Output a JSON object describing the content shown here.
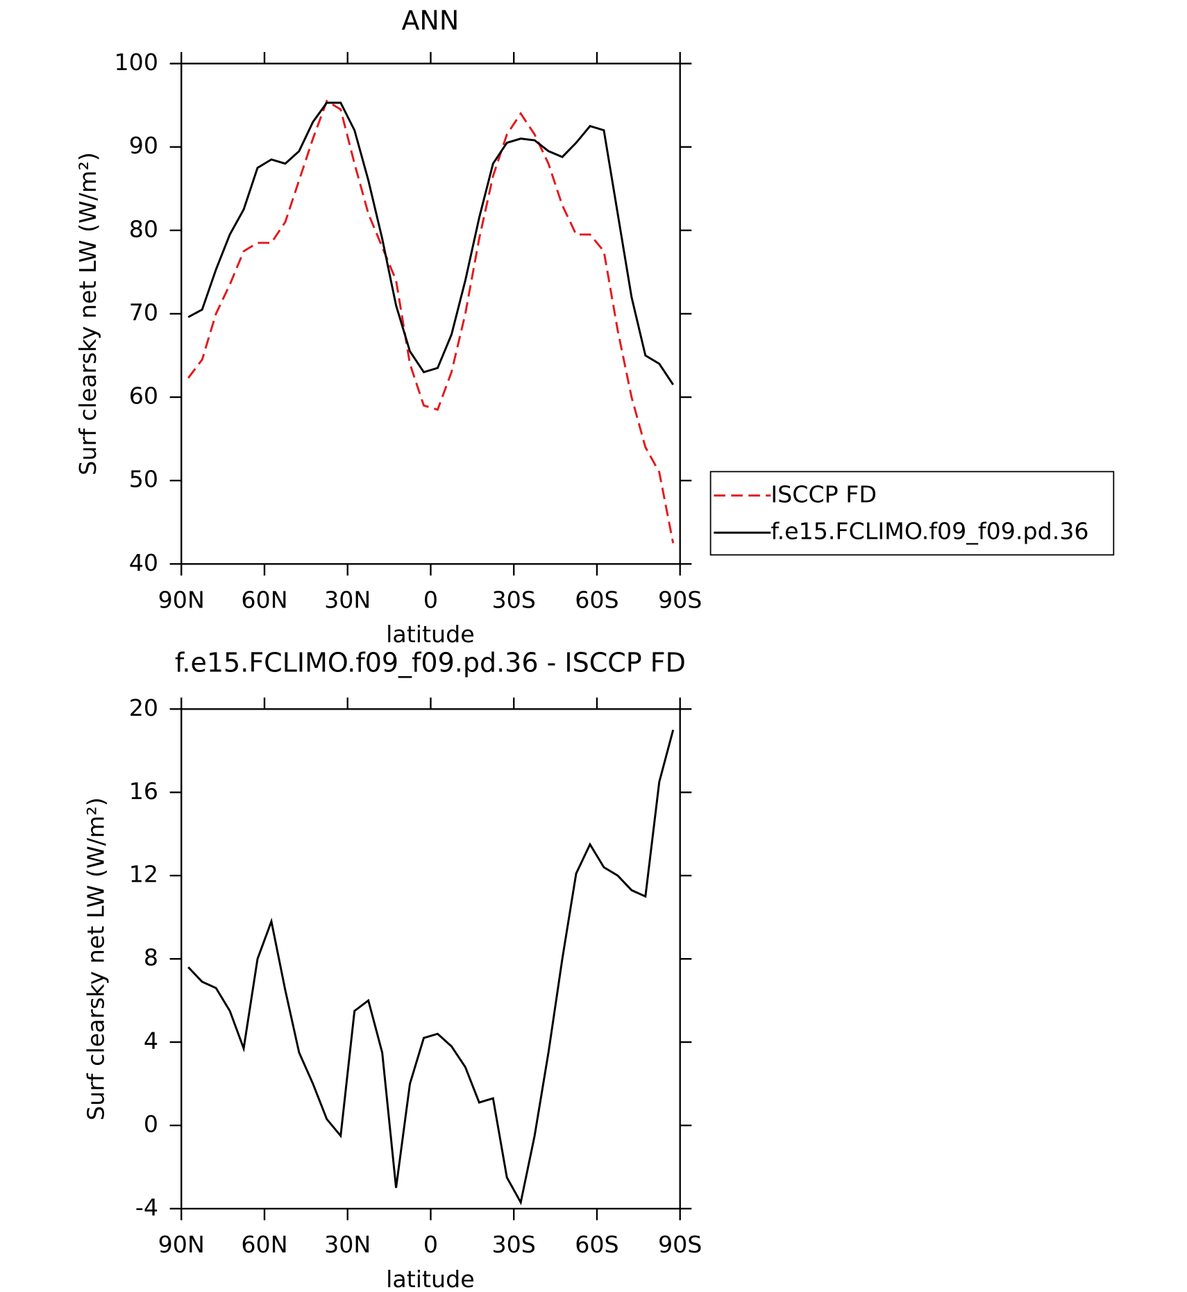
{
  "chart_data": [
    {
      "type": "line",
      "title": "ANN",
      "xlabel": "latitude",
      "ylabel": "Surf clearsky net LW (W/m²)",
      "x": [
        87.5,
        82.5,
        77.5,
        72.5,
        67.5,
        62.5,
        57.5,
        52.5,
        47.5,
        42.5,
        37.5,
        32.5,
        27.5,
        22.5,
        17.5,
        12.5,
        7.5,
        2.5,
        -2.5,
        -7.5,
        -12.5,
        -17.5,
        -22.5,
        -27.5,
        -32.5,
        -37.5,
        -42.5,
        -47.5,
        -52.5,
        -57.5,
        -62.5,
        -67.5,
        -72.5,
        -77.5,
        -82.5,
        -87.5
      ],
      "series": [
        {
          "name": "ISCCP FD",
          "color": "#e41a1c",
          "style": "dashed",
          "values": [
            62.3,
            64.5,
            70,
            73.5,
            77.5,
            78.5,
            78.5,
            81,
            86,
            91,
            95.5,
            94.5,
            88,
            82,
            78,
            74,
            64,
            59,
            58.5,
            63,
            70,
            79,
            86.5,
            91.5,
            94,
            91.5,
            88,
            83,
            79.5,
            79.5,
            77.5,
            68,
            60,
            54,
            51,
            42.5
          ]
        },
        {
          "name": "f.e15.FCLIMO.f09_f09.pd.36",
          "color": "#000000",
          "style": "solid",
          "values": [
            69.6,
            70.5,
            75.3,
            79.5,
            82.5,
            87.5,
            88.5,
            88,
            89.5,
            93,
            95.3,
            95.3,
            92,
            86,
            79,
            71,
            65.5,
            63,
            63.5,
            67.5,
            74,
            81.5,
            88,
            90.5,
            91,
            90.8,
            89.5,
            88.8,
            90.5,
            92.5,
            92,
            82,
            72,
            65,
            64,
            61.5
          ]
        }
      ],
      "xlim": [
        90,
        -90
      ],
      "xticks": [
        {
          "value": 90,
          "label": "90N"
        },
        {
          "value": 60,
          "label": "60N"
        },
        {
          "value": 30,
          "label": "30N"
        },
        0,
        {
          "value": -30,
          "label": "30S"
        },
        {
          "value": -60,
          "label": "60S"
        },
        {
          "value": -90,
          "label": "90S"
        }
      ],
      "ylim": [
        40,
        100
      ],
      "yticks": [
        40,
        50,
        60,
        70,
        80,
        90,
        100
      ],
      "legend": "right"
    },
    {
      "type": "line",
      "title": "f.e15.FCLIMO.f09_f09.pd.36 - ISCCP FD",
      "xlabel": "latitude",
      "ylabel": "Surf clearsky net LW (W/m²)",
      "x": [
        87.5,
        82.5,
        77.5,
        72.5,
        67.5,
        62.5,
        57.5,
        52.5,
        47.5,
        42.5,
        37.5,
        32.5,
        27.5,
        22.5,
        17.5,
        12.5,
        7.5,
        2.5,
        -2.5,
        -7.5,
        -12.5,
        -17.5,
        -22.5,
        -27.5,
        -32.5,
        -37.5,
        -42.5,
        -47.5,
        -52.5,
        -57.5,
        -62.5,
        -67.5,
        -72.5,
        -77.5,
        -82.5,
        -87.5
      ],
      "series": [
        {
          "color": "#000000",
          "style": "solid",
          "values": [
            7.6,
            6.9,
            6.6,
            5.5,
            3.7,
            8,
            9.8,
            6.5,
            3.5,
            2,
            0.3,
            -0.5,
            5.5,
            6,
            3.5,
            -3,
            2,
            4.2,
            4.4,
            3.8,
            2.8,
            1.1,
            1.3,
            -2.5,
            -3.7,
            -0.5,
            3.5,
            8,
            12.1,
            13.5,
            12.4,
            12,
            11.3,
            11,
            16.5,
            19
          ]
        }
      ],
      "xlim": [
        90,
        -90
      ],
      "xticks": [
        {
          "value": 90,
          "label": "90N"
        },
        {
          "value": 60,
          "label": "60N"
        },
        {
          "value": 30,
          "label": "30N"
        },
        0,
        {
          "value": -30,
          "label": "30S"
        },
        {
          "value": -60,
          "label": "60S"
        },
        {
          "value": -90,
          "label": "90S"
        }
      ],
      "ylim": [
        -4,
        20
      ],
      "yticks": [
        -4,
        0,
        4,
        8,
        12,
        16,
        20
      ]
    }
  ]
}
